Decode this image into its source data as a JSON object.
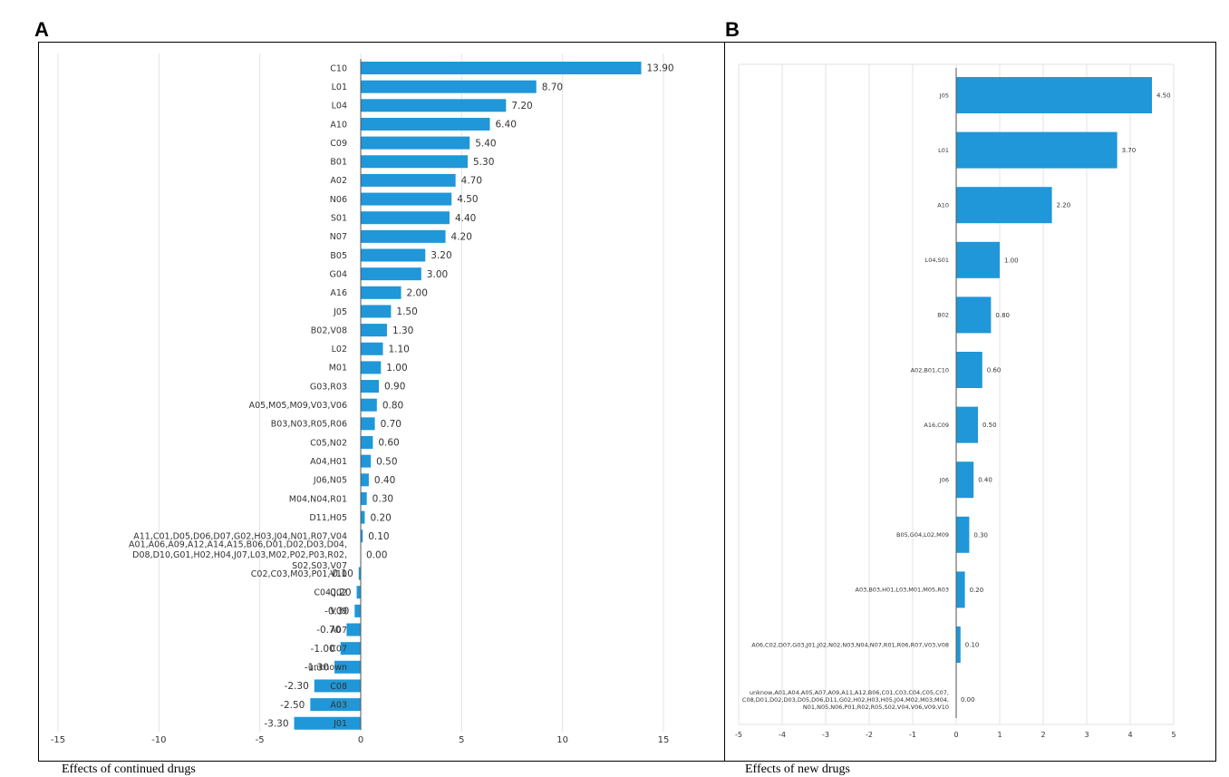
{
  "panels": {
    "a": {
      "letter": "A",
      "caption": "Effects of continued drugs"
    },
    "b": {
      "letter": "B",
      "caption": "Effects of new drugs"
    }
  },
  "colors": {
    "bar": "#1f97d8",
    "grid": "#e3e3e3",
    "axis": "#555555",
    "text": "#333333"
  },
  "chart_data": [
    {
      "type": "bar",
      "orientation": "horizontal",
      "title": "",
      "xlabel": "",
      "ylabel": "",
      "xlim": [
        -15,
        15
      ],
      "xticks": [
        -15,
        -10,
        -5,
        0,
        5,
        10,
        15
      ],
      "grid": true,
      "legend": "none",
      "categories": [
        "C10",
        "L01",
        "L04",
        "A10",
        "C09",
        "B01",
        "A02",
        "N06",
        "S01",
        "N07",
        "B05",
        "G04",
        "A16",
        "J05",
        "B02,V08",
        "L02",
        "M01",
        "G03,R03",
        "A05,M05,M09,V03,V06",
        "B03,N03,R05,R06",
        "C05,N02",
        "A04,H01",
        "J06,N05",
        "M04,N04,R01",
        "D11,H05",
        "A11,C01,D05,D06,D07,G02,H03,J04,N01,R07,V04",
        "A01,A06,A09,A12,A14,A15,B06,D01,D02,D03,D04,D08,D10,G01,H02,H04,J07,L03,M02,P02,P03,R02,S02,S03,V07",
        "C02,C03,M03,P01,V10",
        "C04,J02",
        "V09",
        "A07",
        "C07",
        "unknown",
        "C08",
        "A03",
        "J01"
      ],
      "value_labels": [
        "13.90",
        "8.70",
        "7.20",
        "6.40",
        "5.40",
        "5.30",
        "4.70",
        "4.50",
        "4.40",
        "4.20",
        "3.20",
        "3.00",
        "2.00",
        "1.50",
        "1.30",
        "1.10",
        "1.00",
        "0.90",
        "0.80",
        "0.70",
        "0.60",
        "0.50",
        "0.40",
        "0.30",
        "0.20",
        "0.10",
        "0.00",
        "-0.10",
        "-0.20",
        "-0.30",
        "-0.70",
        "-1.00",
        "-1.30",
        "-2.30",
        "-2.50",
        "-3.30"
      ],
      "values": [
        13.9,
        8.7,
        7.2,
        6.4,
        5.4,
        5.3,
        4.7,
        4.5,
        4.4,
        4.2,
        3.2,
        3.0,
        2.0,
        1.5,
        1.3,
        1.1,
        1.0,
        0.9,
        0.8,
        0.7,
        0.6,
        0.5,
        0.4,
        0.3,
        0.2,
        0.1,
        0.0,
        -0.1,
        -0.2,
        -0.3,
        -0.7,
        -1.0,
        -1.3,
        -2.3,
        -2.5,
        -3.3
      ]
    },
    {
      "type": "bar",
      "orientation": "horizontal",
      "title": "",
      "xlabel": "",
      "ylabel": "",
      "xlim": [
        -5,
        5
      ],
      "xticks": [
        -5,
        -4,
        -3,
        -2,
        -1,
        0,
        1,
        2,
        3,
        4,
        5
      ],
      "grid": true,
      "legend": "none",
      "categories": [
        "J05",
        "L01",
        "A10",
        "L04,S01",
        "B02",
        "A02,B01,C10",
        "A16,C09",
        "J06",
        "B05,G04,L02,M09",
        "A03,B03,H01,L03,M01,M05,R03",
        "A06,C02,D07,G03,J01,J02,N02,N03,N04,N07,R01,R06,R07,V03,V08",
        "unknow,A01,A04,A05,A07,A09,A11,A12,B06,C01,C03,C04,C05,C07,C08,D01,D02,D03,D05,D06,D11,G02,H02,H03,H05,J04,M02,M03,M04,N01,N05,N06,P01,R02,R05,S02,V04,V06,V09,V10"
      ],
      "value_labels": [
        "4.50",
        "3.70",
        "2.20",
        "1.00",
        "0.80",
        "0.60",
        "0.50",
        "0.40",
        "0.30",
        "0.20",
        "0.10",
        "0.00"
      ],
      "values": [
        4.5,
        3.7,
        2.2,
        1.0,
        0.8,
        0.6,
        0.5,
        0.4,
        0.3,
        0.2,
        0.1,
        0.0
      ]
    }
  ]
}
